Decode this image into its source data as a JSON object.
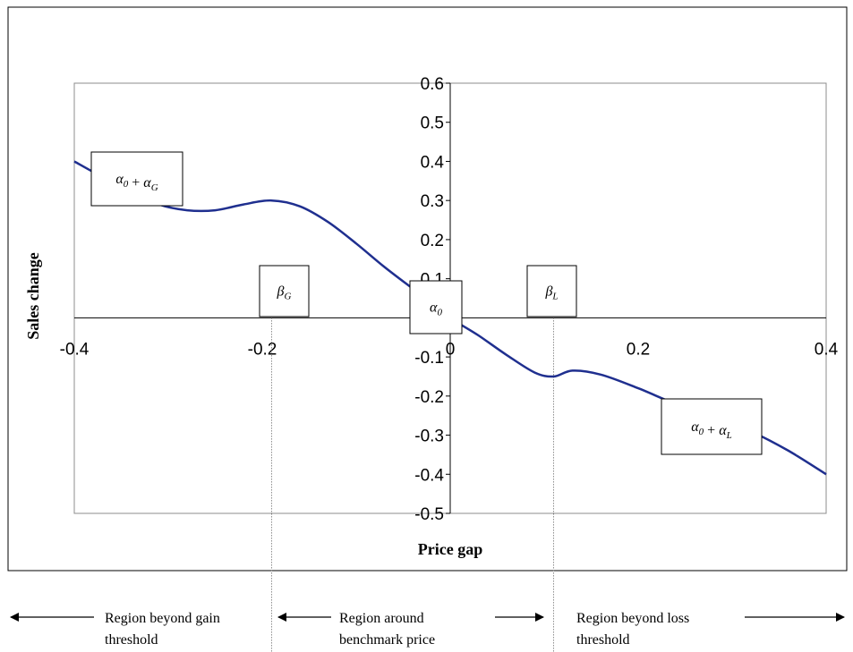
{
  "chart_data": {
    "type": "line",
    "title": "",
    "xlabel": "Price gap",
    "ylabel": "Sales change",
    "xlim": [
      -0.4,
      0.4
    ],
    "ylim": [
      -0.5,
      0.6
    ],
    "xticks": [
      {
        "value": -0.4,
        "label": "-0.4"
      },
      {
        "value": -0.2,
        "label": "-0.2"
      },
      {
        "value": 0,
        "label": "0"
      },
      {
        "value": 0.2,
        "label": "0.2"
      },
      {
        "value": 0.4,
        "label": "0.4"
      }
    ],
    "yticks": [
      {
        "value": 0.6,
        "label": "0.6"
      },
      {
        "value": 0.5,
        "label": "0.5"
      },
      {
        "value": 0.4,
        "label": "0.4"
      },
      {
        "value": 0.3,
        "label": "0.3"
      },
      {
        "value": 0.2,
        "label": "0.2"
      },
      {
        "value": 0.1,
        "label": "0.1"
      },
      {
        "value": -0.1,
        "label": "-0.1"
      },
      {
        "value": -0.2,
        "label": "-0.2"
      },
      {
        "value": -0.3,
        "label": "-0.3"
      },
      {
        "value": -0.4,
        "label": "-0.4"
      },
      {
        "value": -0.5,
        "label": "-0.5"
      }
    ],
    "grid": false,
    "legend": "none",
    "line_color": "#1f2f8f",
    "series": [
      {
        "x": [
          -0.4,
          -0.37,
          -0.34,
          -0.31,
          -0.28,
          -0.25,
          -0.22,
          -0.19,
          -0.16,
          -0.13,
          -0.1,
          -0.07,
          -0.04,
          -0.02,
          0.0,
          0.03,
          0.06,
          0.09,
          0.11,
          0.13,
          0.16,
          0.2,
          0.24,
          0.28,
          0.32,
          0.36,
          0.4
        ],
        "y": [
          0.4,
          0.36,
          0.325,
          0.29,
          0.275,
          0.275,
          0.29,
          0.3,
          0.285,
          0.245,
          0.19,
          0.13,
          0.075,
          0.04,
          0.0,
          -0.045,
          -0.095,
          -0.14,
          -0.15,
          -0.135,
          -0.145,
          -0.18,
          -0.22,
          -0.25,
          -0.29,
          -0.34,
          -0.4
        ]
      }
    ],
    "annotations": [
      {
        "id": "alpha0-plus-alphaG",
        "base": "α",
        "base_sub": "0",
        "op": " + ",
        "base2": "α",
        "base2_sub": "G",
        "x": -0.4,
        "y": 0.4
      },
      {
        "id": "betaG",
        "base": "β",
        "base_sub": "G",
        "x": -0.19,
        "y": 0.0
      },
      {
        "id": "alpha0",
        "base": "α",
        "base_sub": "0",
        "x": 0.0,
        "y": 0.0
      },
      {
        "id": "betaL",
        "base": "β",
        "base_sub": "L",
        "x": 0.11,
        "y": 0.0
      },
      {
        "id": "alpha0-plus-alphaL",
        "base": "α",
        "base_sub": "0",
        "op": " + ",
        "base2": "α",
        "base2_sub": "L",
        "x": 0.3,
        "y": -0.3
      }
    ],
    "thresholds": [
      {
        "id": "gain-threshold",
        "x": -0.19
      },
      {
        "id": "loss-threshold",
        "x": 0.11
      }
    ],
    "regions": [
      {
        "id": "beyond-gain",
        "lines": [
          "Region beyond gain",
          "threshold"
        ]
      },
      {
        "id": "around-benchmark",
        "lines": [
          "Region around",
          "benchmark price"
        ]
      },
      {
        "id": "beyond-loss",
        "lines": [
          "Region beyond loss",
          "threshold"
        ]
      }
    ]
  }
}
